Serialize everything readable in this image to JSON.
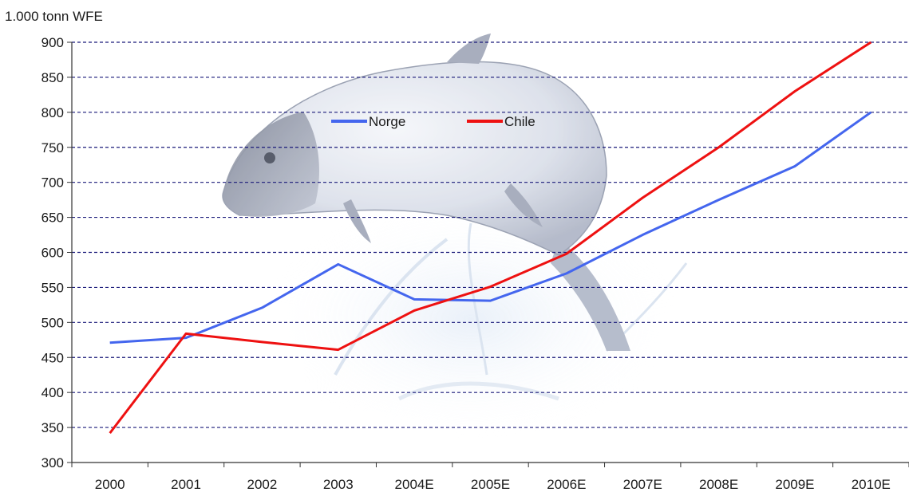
{
  "chart_data": {
    "type": "line",
    "title": "",
    "xlabel": "",
    "ylabel": "1.000 tonn WFE",
    "categories": [
      "2000",
      "2001",
      "2002",
      "2003",
      "2004E",
      "2005E",
      "2006E",
      "2007E",
      "2008E",
      "2009E",
      "2010E"
    ],
    "ylim": [
      300,
      900
    ],
    "yticks": [
      300,
      350,
      400,
      450,
      500,
      550,
      600,
      650,
      700,
      750,
      800,
      850,
      900
    ],
    "grid": true,
    "legend": "top-center",
    "series": [
      {
        "name": "Norge",
        "color": "#4466ee",
        "values": [
          471,
          478,
          521,
          583,
          533,
          531,
          570,
          625,
          675,
          723,
          800
        ]
      },
      {
        "name": "Chile",
        "color": "#ee1111",
        "values": [
          342,
          484,
          472,
          461,
          517,
          551,
          598,
          678,
          750,
          830,
          900
        ]
      }
    ],
    "background_image": "salmon-fish-illustration"
  }
}
